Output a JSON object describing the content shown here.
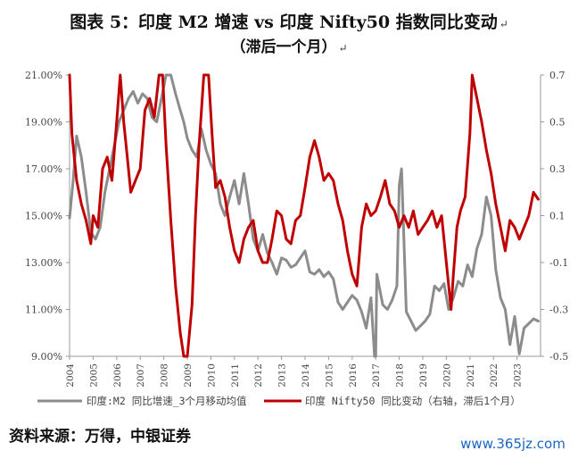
{
  "title_line1": "图表 5：印度 M2 增速 vs 印度 Nifty50 指数同比变动",
  "title_line2": "（滞后一个月）",
  "source": "资料来源：万得，中银证券",
  "watermark": "www.365jz.com",
  "colors": {
    "m2": "#8c8c8c",
    "nifty": "#c00000",
    "axis": "#999999",
    "text": "#444444"
  },
  "chart_data": {
    "type": "line",
    "xlabel": "",
    "ylabel_left": "",
    "ylabel_right": "",
    "x_ticks": [
      "2004",
      "2005",
      "2006",
      "2007",
      "2008",
      "2009",
      "2010",
      "2011",
      "2012",
      "2013",
      "2014",
      "2015",
      "2016",
      "2017",
      "2018",
      "2019",
      "2020",
      "2021",
      "2022",
      "2023"
    ],
    "left_axis": {
      "ticks": [
        "21.00%",
        "19.00%",
        "17.00%",
        "15.00%",
        "13.00%",
        "11.00%",
        "9.00%"
      ],
      "ylim": [
        9,
        21
      ]
    },
    "right_axis": {
      "ticks": [
        "0.7",
        "0.5",
        "0.3",
        "0.1",
        "-0.1",
        "-0.3",
        "-0.5"
      ],
      "ylim": [
        -0.5,
        0.7
      ]
    },
    "grid": false,
    "legend_position": "bottom",
    "series": [
      {
        "name": "印度:M2 同比增速_3个月移动均值",
        "axis": "left",
        "x": [
          2004.0,
          2004.15,
          2004.3,
          2004.5,
          2004.7,
          2004.9,
          2005.1,
          2005.3,
          2005.5,
          2005.7,
          2005.9,
          2006.1,
          2006.3,
          2006.5,
          2006.7,
          2006.9,
          2007.1,
          2007.3,
          2007.5,
          2007.7,
          2007.9,
          2008.1,
          2008.3,
          2008.5,
          2008.7,
          2008.85,
          2009.0,
          2009.2,
          2009.4,
          2009.6,
          2009.8,
          2010.0,
          2010.2,
          2010.4,
          2010.6,
          2010.8,
          2011.0,
          2011.2,
          2011.4,
          2011.6,
          2011.8,
          2012.0,
          2012.2,
          2012.4,
          2012.6,
          2012.8,
          2013.0,
          2013.2,
          2013.4,
          2013.6,
          2013.8,
          2014.0,
          2014.2,
          2014.4,
          2014.6,
          2014.8,
          2015.0,
          2015.2,
          2015.4,
          2015.6,
          2015.8,
          2016.0,
          2016.2,
          2016.4,
          2016.6,
          2016.8,
          2016.95,
          2017.0,
          2017.05,
          2017.3,
          2017.5,
          2017.7,
          2017.9,
          2018.0,
          2018.1,
          2018.3,
          2018.5,
          2018.7,
          2018.9,
          2019.1,
          2019.3,
          2019.5,
          2019.7,
          2019.9,
          2020.1,
          2020.3,
          2020.5,
          2020.7,
          2020.9,
          2021.1,
          2021.3,
          2021.5,
          2021.7,
          2021.9,
          2022.1,
          2022.3,
          2022.5,
          2022.7,
          2022.9,
          2023.1,
          2023.3,
          2023.5,
          2023.7,
          2023.9
        ],
        "values": [
          14.9,
          16.5,
          18.4,
          17.5,
          16.0,
          14.3,
          14.0,
          14.5,
          16.0,
          17.0,
          18.0,
          19.0,
          19.5,
          20.0,
          20.3,
          19.8,
          20.2,
          20.0,
          19.2,
          19.0,
          20.0,
          21.2,
          21.2,
          20.2,
          19.5,
          19.0,
          18.3,
          17.8,
          17.5,
          18.7,
          17.8,
          17.2,
          16.8,
          15.5,
          15.0,
          15.8,
          16.5,
          15.5,
          16.8,
          15.5,
          14.0,
          13.5,
          14.2,
          13.4,
          13.0,
          12.5,
          13.2,
          13.1,
          12.8,
          12.9,
          13.2,
          13.5,
          12.6,
          12.5,
          12.7,
          12.4,
          12.6,
          12.3,
          11.3,
          11.0,
          11.3,
          11.6,
          11.4,
          10.9,
          10.2,
          11.5,
          8.7,
          8.8,
          12.5,
          11.2,
          11.0,
          11.4,
          12.0,
          16.3,
          17.0,
          10.9,
          10.5,
          10.1,
          10.3,
          10.5,
          10.8,
          12.0,
          11.8,
          12.1,
          11.0,
          11.5,
          12.2,
          12.0,
          12.9,
          12.4,
          13.6,
          14.2,
          15.8,
          15.0,
          12.7,
          11.5,
          11.0,
          9.5,
          10.7,
          9.1,
          10.2,
          10.4,
          10.6,
          10.5
        ]
      },
      {
        "name": "印度 Nifty50 同比变动（右轴，滞后1个月）",
        "axis": "right",
        "x": [
          2004.0,
          2004.1,
          2004.3,
          2004.5,
          2004.7,
          2004.9,
          2005.0,
          2005.2,
          2005.4,
          2005.6,
          2005.8,
          2006.0,
          2006.15,
          2006.3,
          2006.45,
          2006.6,
          2006.8,
          2007.0,
          2007.2,
          2007.4,
          2007.6,
          2007.8,
          2007.95,
          2008.1,
          2008.3,
          2008.5,
          2008.7,
          2008.85,
          2009.0,
          2009.2,
          2009.35,
          2009.5,
          2009.7,
          2009.9,
          2010.05,
          2010.2,
          2010.4,
          2010.6,
          2010.8,
          2011.0,
          2011.2,
          2011.4,
          2011.6,
          2011.8,
          2012.0,
          2012.2,
          2012.4,
          2012.6,
          2012.8,
          2013.0,
          2013.2,
          2013.4,
          2013.6,
          2013.8,
          2014.0,
          2014.2,
          2014.4,
          2014.6,
          2014.8,
          2015.0,
          2015.2,
          2015.4,
          2015.6,
          2015.8,
          2016.0,
          2016.2,
          2016.4,
          2016.6,
          2016.8,
          2017.0,
          2017.2,
          2017.4,
          2017.6,
          2017.8,
          2018.0,
          2018.2,
          2018.4,
          2018.6,
          2018.8,
          2019.0,
          2019.2,
          2019.4,
          2019.6,
          2019.8,
          2020.0,
          2020.2,
          2020.3,
          2020.45,
          2020.6,
          2020.8,
          2021.0,
          2021.1,
          2021.3,
          2021.5,
          2021.7,
          2021.9,
          2022.1,
          2022.3,
          2022.5,
          2022.7,
          2022.9,
          2023.1,
          2023.3,
          2023.5,
          2023.7,
          2023.9
        ],
        "values": [
          0.7,
          0.45,
          0.25,
          0.15,
          0.08,
          -0.02,
          0.1,
          0.05,
          0.3,
          0.35,
          0.25,
          0.5,
          0.7,
          0.5,
          0.35,
          0.2,
          0.25,
          0.3,
          0.55,
          0.6,
          0.52,
          0.7,
          0.7,
          0.4,
          0.08,
          -0.2,
          -0.4,
          -0.5,
          -0.5,
          -0.28,
          0.1,
          0.4,
          0.7,
          0.7,
          0.45,
          0.22,
          0.25,
          0.18,
          0.05,
          -0.05,
          -0.1,
          0.0,
          0.05,
          0.08,
          -0.05,
          -0.1,
          -0.1,
          0.0,
          0.12,
          0.1,
          0.0,
          -0.02,
          0.08,
          0.1,
          0.22,
          0.35,
          0.42,
          0.35,
          0.25,
          0.28,
          0.25,
          0.15,
          0.08,
          -0.05,
          -0.15,
          -0.2,
          0.05,
          0.15,
          0.1,
          0.12,
          0.18,
          0.25,
          0.15,
          0.12,
          0.05,
          0.1,
          0.05,
          0.12,
          0.02,
          0.05,
          0.08,
          0.12,
          0.05,
          0.1,
          -0.1,
          -0.3,
          -0.15,
          0.05,
          0.12,
          0.18,
          0.45,
          0.7,
          0.6,
          0.5,
          0.38,
          0.28,
          0.15,
          0.05,
          -0.05,
          0.08,
          0.05,
          0.0,
          0.05,
          0.1,
          0.2,
          0.17
        ]
      }
    ]
  }
}
